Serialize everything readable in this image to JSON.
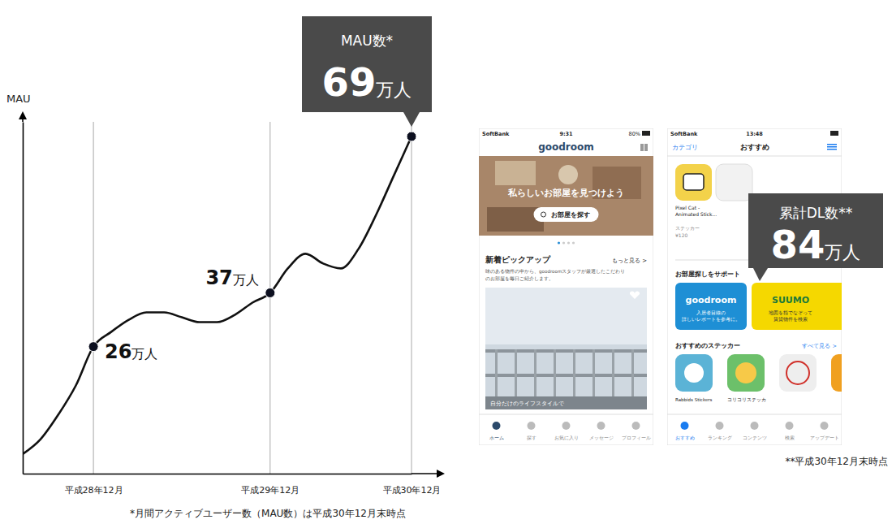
{
  "chart_data": {
    "type": "line",
    "ylabel": "MAU",
    "annotation": "MAU数*",
    "footnote": "*月間アクティブユーザー数（MAU数）は平成30年12月末時点",
    "categories": [
      null,
      null,
      null,
      null,
      "平成28年12月",
      null,
      null,
      null,
      null,
      null,
      null,
      null,
      null,
      null,
      "平成29年12月",
      null,
      null,
      null,
      null,
      null,
      null,
      null,
      "平成30年12月"
    ],
    "values": [
      4,
      7,
      12,
      18,
      26,
      29,
      31.5,
      33,
      33,
      32,
      31,
      31,
      32.5,
      35,
      37,
      42,
      45,
      43,
      42,
      46,
      53,
      61,
      69
    ],
    "value_labels": [
      null,
      null,
      null,
      null,
      "26万人",
      null,
      null,
      null,
      null,
      null,
      null,
      null,
      null,
      null,
      "37万人",
      null,
      null,
      null,
      null,
      null,
      null,
      null,
      "69万人"
    ],
    "data_labels": true,
    "color": "#111111",
    "marker": "circle",
    "ylim": [
      0,
      72
    ],
    "yticks": [],
    "tick_labels": "x",
    "grid": true
  },
  "dl_callout": {
    "title": "累計DL数**",
    "value_label": "84万人"
  },
  "dl_footnote": "**平成30年12月末時点",
  "screenshots": [
    {
      "status_carrier": "SoftBank",
      "time": "9:31",
      "battery": "80%",
      "app_title": "goodroom",
      "hero_text": "私らしいお部屋を見つけよう",
      "search_button": "お部屋を探す",
      "section_title": "新着ピックアップ",
      "more_link": "もっと見る >",
      "description": [
        "味のある物件の中から、goodroomスタッフが厳選したこだわり",
        "のお部屋を毎日ご紹介します。"
      ],
      "photo_caption": "自分だけのライフスタイルで",
      "tabs": [
        "ホーム",
        "探す",
        "お気に入り",
        "メッセージ",
        "プロフィール"
      ]
    },
    {
      "status_carrier": "SoftBank",
      "time": "13:48",
      "back_link": "カテゴリ",
      "screen_title": "おすすめ",
      "featured_sticker": {
        "name": [
          "Pixel Cat -",
          "Animated Stick..."
        ],
        "category": "ステッカー",
        "price": "¥120"
      },
      "section_title": "お部屋探しをサポート",
      "tiles": [
        {
          "title": "goodroom",
          "caption": [
            "入居者目線の",
            "詳しいレポートを参考に。"
          ]
        },
        {
          "title": "SUUMO",
          "caption": [
            "地図を指でなぞって",
            "賃貸物件を検索"
          ]
        }
      ],
      "stickers_title": "おすすめのステッカー",
      "more_link": "すべて見る >",
      "stickers": [
        "Rabbids Stickers",
        "コリコリステッカ"
      ],
      "tabs": [
        "おすすめ",
        "ランキング",
        "コンテンツ",
        "検索",
        "アップデート"
      ]
    }
  ]
}
